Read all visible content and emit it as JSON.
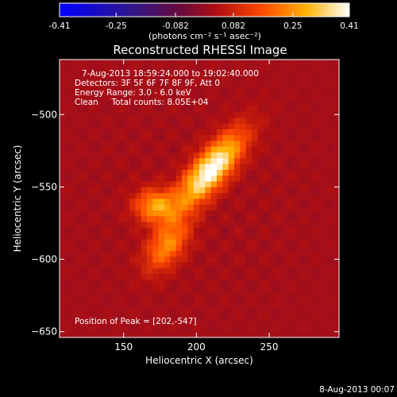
{
  "chart_data": {
    "type": "heatmap",
    "title": "Reconstructed RHESSI Image",
    "xlabel": "Heliocentric X (arcsec)",
    "ylabel": "Heliocentric Y (arcsec)",
    "xlim": [
      106,
      298
    ],
    "ylim": [
      -654,
      -462
    ],
    "x_ticks": [
      150,
      200,
      250
    ],
    "y_ticks": [
      -500,
      -550,
      -600,
      -650
    ],
    "colorbar": {
      "ticks": [
        "-0.41",
        "-0.25",
        "-0.082",
        "0.082",
        "0.25",
        "0.41"
      ],
      "range": [
        -0.41,
        0.41
      ],
      "units": "(photons cm⁻² s⁻¹ asec⁻²)",
      "colormap": "blue-purple-red-orange-yellow-white"
    },
    "annotations": [
      "7-Aug-2013 18:59:24.000 to 19:02:40.000",
      "Detectors: 3F 5F 6F 7F 8F 9F, Att 0",
      "Energy Range: 3.0 - 6.0 keV",
      "Clean     Total counts: 8.05E+04"
    ],
    "peak_label": "Position of Peak = [202,-547]",
    "peak": [
      202,
      -547
    ],
    "sources": [
      {
        "x": 210,
        "y": -538,
        "peak": 0.41,
        "sigma_major": 22,
        "sigma_minor": 8,
        "angle_deg": 50
      },
      {
        "x": 172,
        "y": -563,
        "peak": 0.25,
        "sigma_major": 10,
        "sigma_minor": 8,
        "angle_deg": 0
      },
      {
        "x": 180,
        "y": -590,
        "peak": 0.22,
        "sigma_major": 14,
        "sigma_minor": 8,
        "angle_deg": 55
      }
    ],
    "background_level": 0.02
  },
  "footer": {
    "date": "8-Aug-2013 00:07"
  }
}
